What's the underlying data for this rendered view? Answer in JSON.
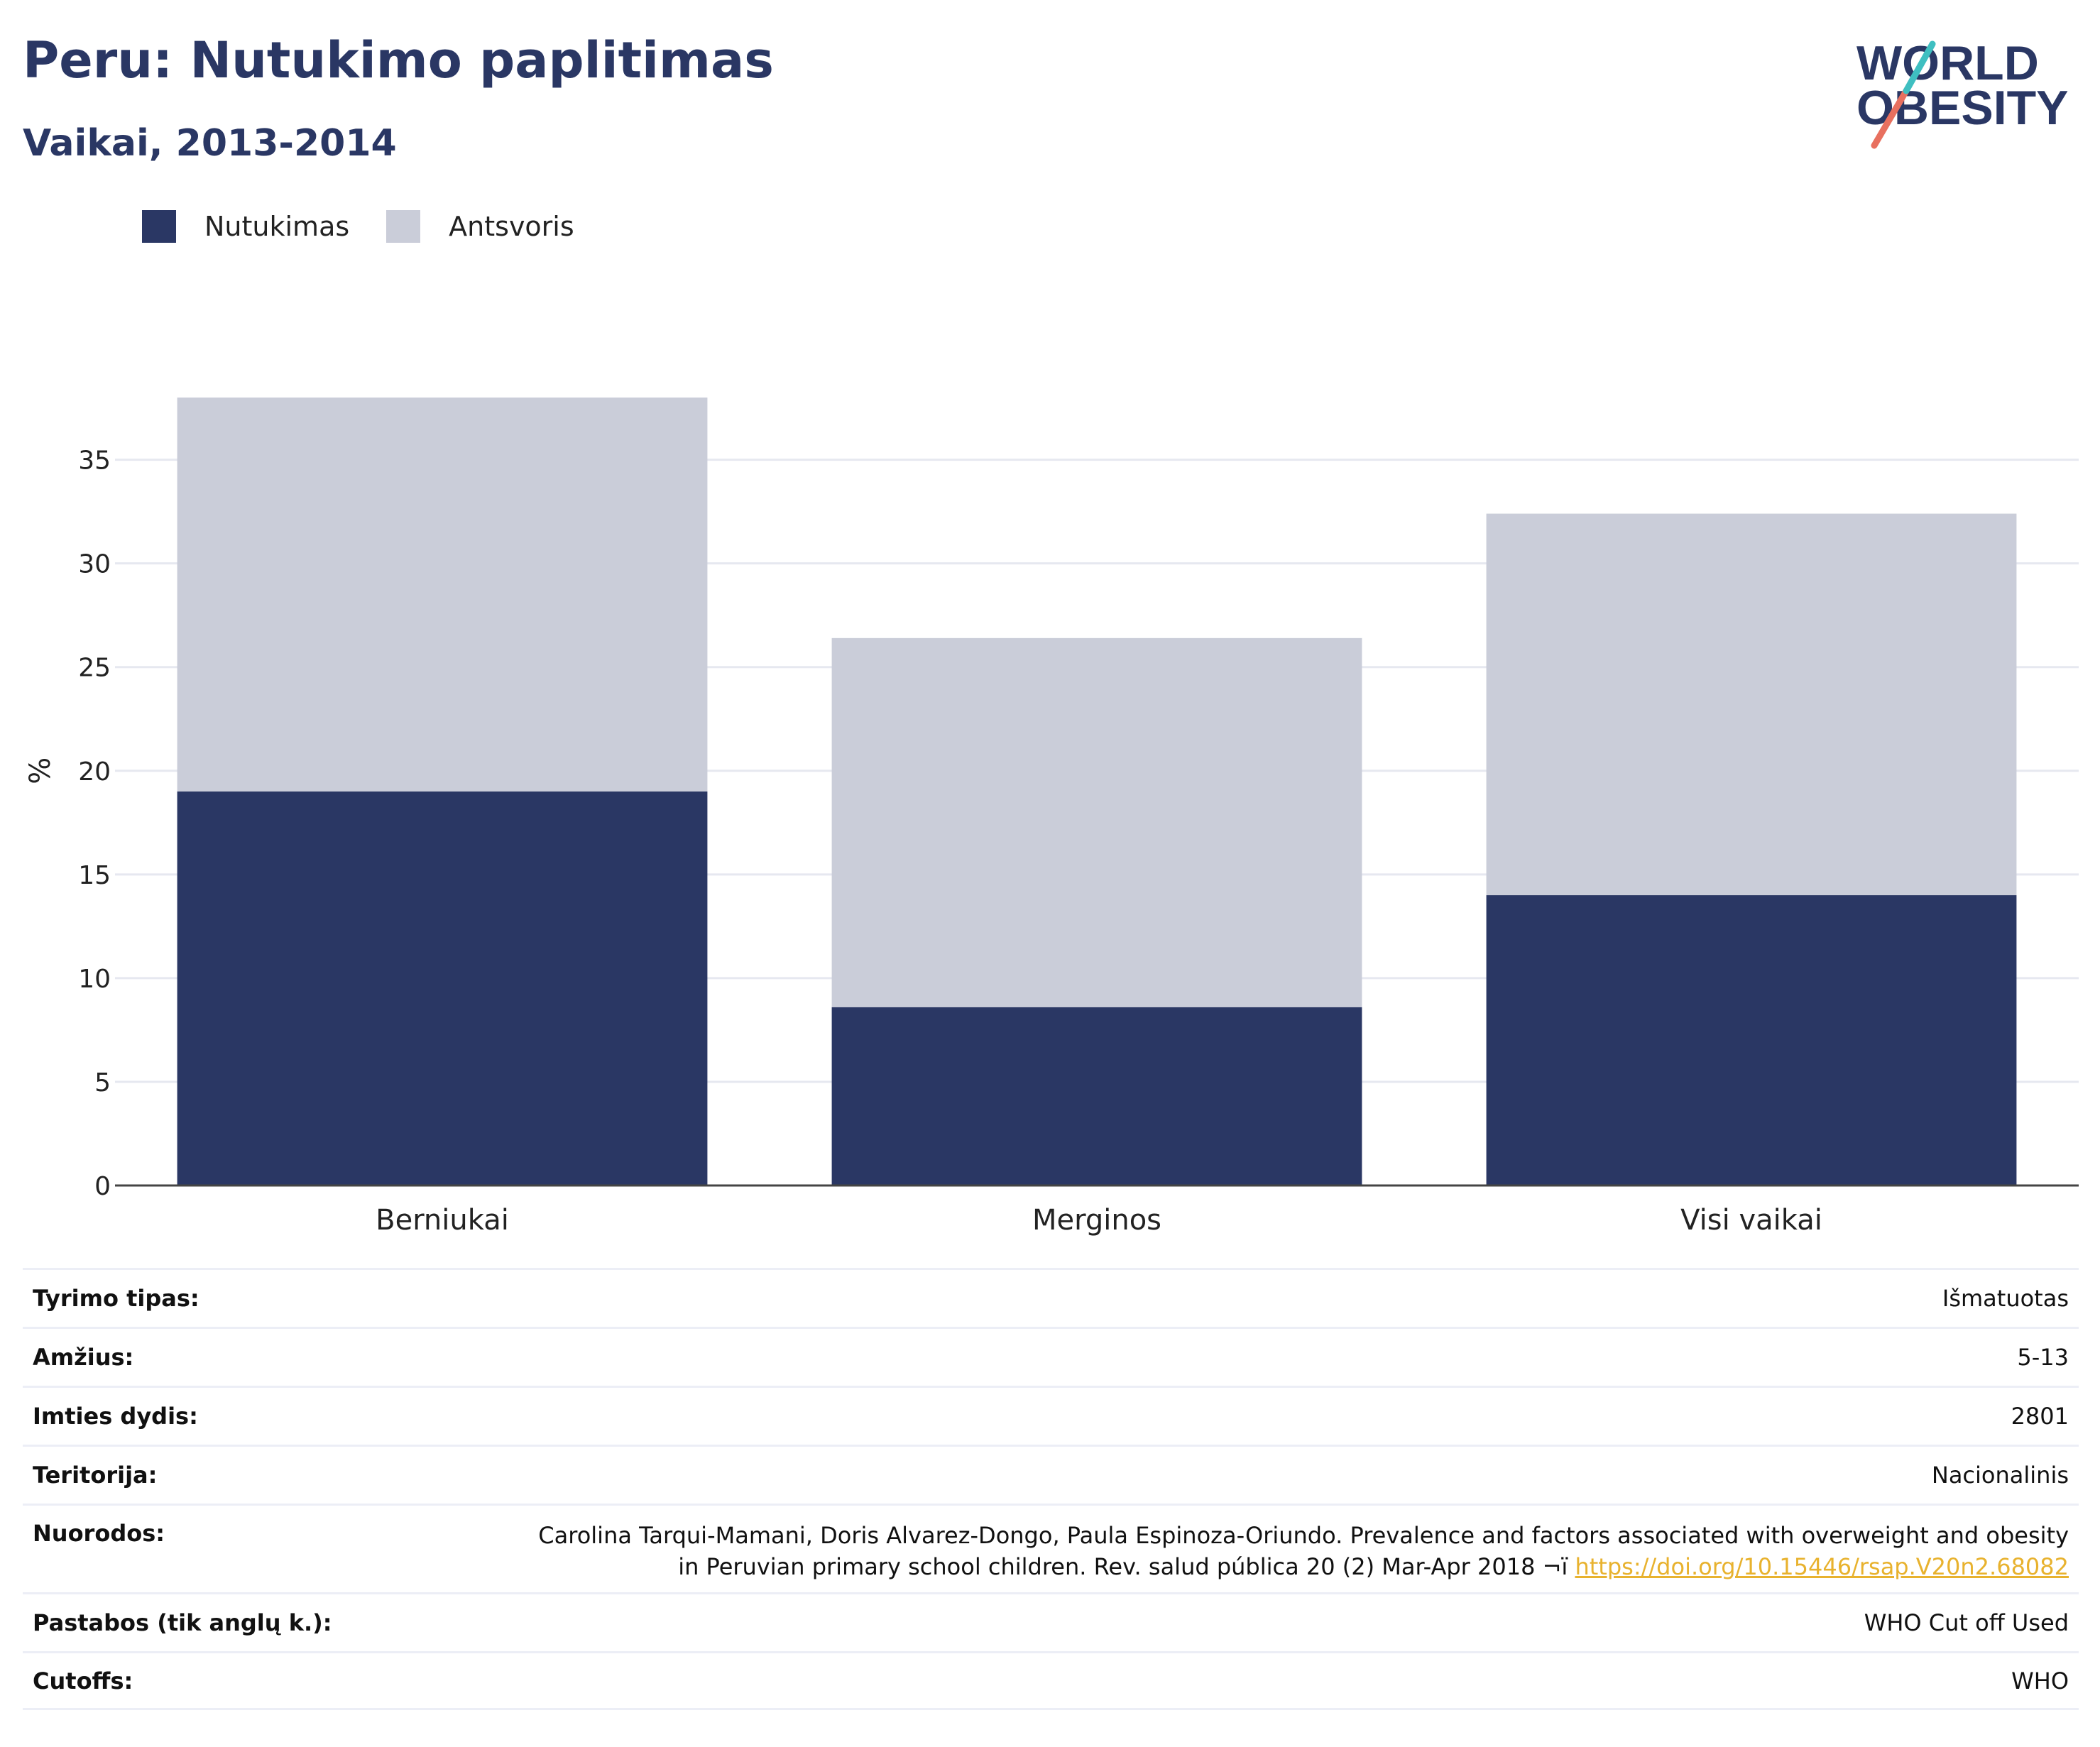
{
  "title": "Peru: Nutukimo paplitimas",
  "subtitle": "Vaikai, 2013-2014",
  "logo": {
    "line1": "WORLD",
    "line2": "OBESITY"
  },
  "colors": {
    "obesity": "#2a3764",
    "overweight": "#cacdd9",
    "title": "#2a3764",
    "link": "#e8b22e"
  },
  "legend": [
    {
      "label": "Nutukimas",
      "color": "#2a3764"
    },
    {
      "label": "Antsvoris",
      "color": "#cacdd9"
    }
  ],
  "chart_data": {
    "type": "bar",
    "stacked": true,
    "categories": [
      "Berniukai",
      "Merginos",
      "Visi vaikai"
    ],
    "series": [
      {
        "name": "Nutukimas",
        "values": [
          19.0,
          8.6,
          14.0
        ]
      },
      {
        "name": "Antsvoris",
        "values": [
          19.0,
          17.8,
          18.4
        ]
      }
    ],
    "ylabel": "%",
    "ylim": [
      0,
      38
    ],
    "yticks": [
      0,
      5,
      10,
      15,
      20,
      25,
      30,
      35
    ],
    "grid": true,
    "legend_position": "top-left"
  },
  "info": {
    "survey_type": {
      "label": "Tyrimo tipas:",
      "value": "Išmatuotas"
    },
    "age": {
      "label": "Amžius:",
      "value": "5-13"
    },
    "sample_size": {
      "label": "Imties dydis:",
      "value": "2801"
    },
    "territory": {
      "label": "Teritorija:",
      "value": "Nacionalinis"
    },
    "references": {
      "label": "Nuorodos:",
      "line1": "Carolina Tarqui-Mamani, Doris Alvarez-Dongo, Paula Espinoza-Oriundo. Prevalence and factors associated with overweight and obesity",
      "line2": "in Peruvian primary school children. Rev. salud pública 20 (2) Mar-Apr 2018 ¬ï ",
      "link": "https://doi.org/10.15446/rsap.V20n2.68082"
    },
    "notes": {
      "label": "Pastabos (tik anglų k.):",
      "value": "WHO Cut off Used"
    },
    "cutoffs": {
      "label": "Cutoffs:",
      "value": "WHO"
    }
  }
}
